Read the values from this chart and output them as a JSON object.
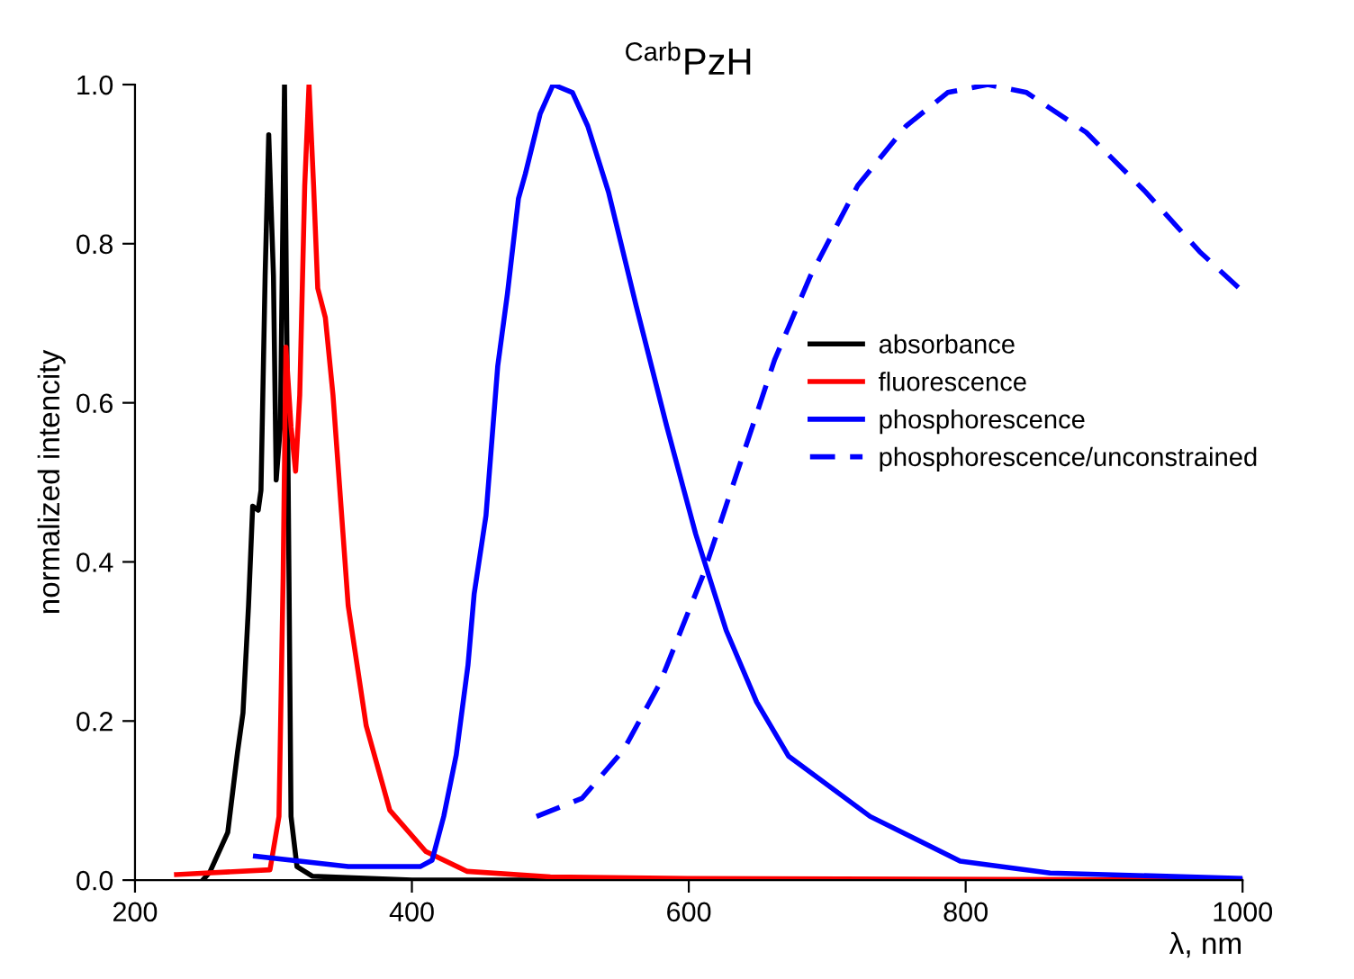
{
  "chart_data": {
    "type": "line",
    "title": "$^{Carb}$PzH",
    "xlabel": "λ, nm",
    "ylabel": "normalized intencity",
    "xlim": [
      200,
      1000
    ],
    "xticks": [
      200,
      400,
      600,
      800,
      1000
    ],
    "ylim": [
      0,
      1
    ],
    "yticks": [
      {
        "value": 0,
        "label": "0.0"
      },
      {
        "value": 0.2,
        "label": "0.2"
      },
      {
        "value": 0.4,
        "label": "0.4"
      },
      {
        "value": 0.6,
        "label": "0.6"
      },
      {
        "value": 0.8,
        "label": "0.8"
      },
      {
        "value": 1,
        "label": "1.0"
      }
    ],
    "grid": false,
    "legend": "right",
    "marker": "none",
    "series": [
      {
        "name": "absorbance",
        "color": "#000000",
        "line_style": "solid",
        "x": [
          249,
          254,
          267,
          274,
          278,
          282,
          285,
          289,
          291,
          294,
          296.6,
          300,
          302,
          305,
          308,
          310.5,
          312.7,
          317,
          328,
          400,
          600,
          1000
        ],
        "values": [
          0,
          0.01,
          0.06,
          0.16,
          0.21,
          0.345,
          0.47,
          0.465,
          0.49,
          0.76,
          0.937,
          0.76,
          0.503,
          0.57,
          1.0,
          0.53,
          0.08,
          0.017,
          0.005,
          0,
          0,
          0
        ]
      },
      {
        "name": "fluorescence",
        "color": "#ff0000",
        "line_style": "solid",
        "x": [
          230,
          297.5,
          304,
          307,
          309,
          312.7,
          316,
          319,
          322.6,
          325.7,
          329,
          332,
          337.5,
          343,
          354,
          367,
          384,
          410,
          440,
          500,
          600,
          1000
        ],
        "values": [
          0.007,
          0.013,
          0.08,
          0.38,
          0.67,
          0.57,
          0.514,
          0.61,
          0.873,
          1.0,
          0.873,
          0.744,
          0.707,
          0.61,
          0.345,
          0.194,
          0.088,
          0.036,
          0.011,
          0.004,
          0.002,
          0
        ]
      },
      {
        "name": "phosphorescence",
        "color": "#0000ff",
        "line_style": "solid",
        "x": [
          287,
          354,
          406,
          414.6,
          423,
          432,
          440.5,
          445,
          453.5,
          462,
          469,
          477,
          482,
          492.6,
          502,
          516,
          527,
          542,
          562,
          584,
          605,
          627,
          649,
          672,
          731,
          796,
          861,
          1000
        ],
        "values": [
          0.03,
          0.017,
          0.017,
          0.025,
          0.08,
          0.157,
          0.27,
          0.36,
          0.458,
          0.646,
          0.737,
          0.857,
          0.888,
          0.963,
          1.0,
          0.99,
          0.948,
          0.865,
          0.722,
          0.571,
          0.435,
          0.314,
          0.224,
          0.156,
          0.08,
          0.024,
          0.009,
          0.002
        ]
      },
      {
        "name": "phosphorescence/unconstrained",
        "color": "#0000ff",
        "line_style": "dashed",
        "x": [
          490,
          523,
          553,
          579,
          610,
          636,
          662,
          688,
          722,
          757,
          787,
          816,
          844,
          887,
          930,
          969,
          1000
        ],
        "values": [
          0.08,
          0.103,
          0.164,
          0.247,
          0.382,
          0.518,
          0.654,
          0.76,
          0.873,
          0.948,
          0.99,
          1.0,
          0.99,
          0.94,
          0.865,
          0.79,
          0.74
        ]
      }
    ]
  }
}
